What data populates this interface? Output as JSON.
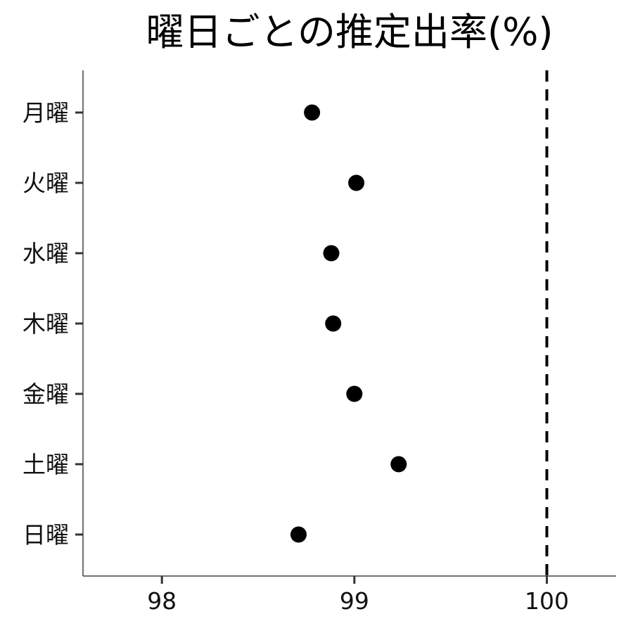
{
  "chart_data": {
    "type": "scatter",
    "title": "曜日ごとの推定出率(%)",
    "xlabel": "",
    "ylabel": "",
    "xlim": [
      97.59,
      100.36
    ],
    "x_ticks": [
      98,
      99,
      100
    ],
    "x_tick_labels": [
      "98",
      "99",
      "100"
    ],
    "categories": [
      "月曜",
      "火曜",
      "水曜",
      "木曜",
      "金曜",
      "土曜",
      "日曜"
    ],
    "points": [
      {
        "category": "月曜",
        "x": 98.78
      },
      {
        "category": "火曜",
        "x": 99.01
      },
      {
        "category": "水曜",
        "x": 98.88
      },
      {
        "category": "木曜",
        "x": 98.89
      },
      {
        "category": "金曜",
        "x": 99.0
      },
      {
        "category": "土曜",
        "x": 99.23
      },
      {
        "category": "日曜",
        "x": 98.71
      }
    ],
    "reference_line": {
      "x": 100,
      "style": "dashed"
    },
    "grid": false,
    "legend": "none",
    "colors": {
      "point": "#000000",
      "axis": "#444444",
      "reference_line": "#000000"
    }
  }
}
